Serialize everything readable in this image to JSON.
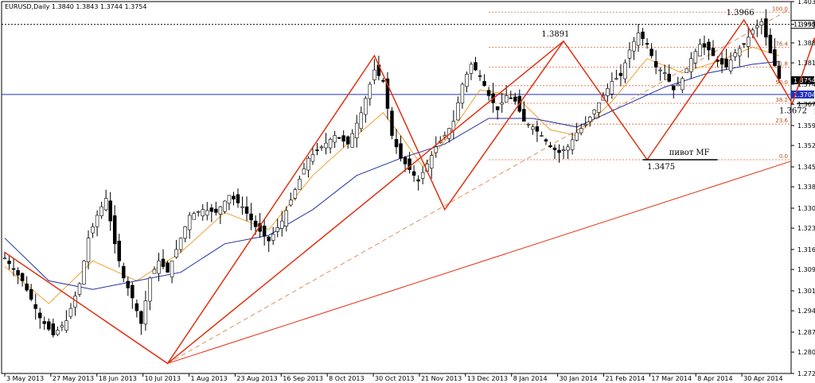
{
  "chart_data": {
    "type": "candlestick",
    "title": "EURUSD,Daily  1.3840 1.3843 1.3744 1.3754",
    "ylim": [
      1.2725,
      1.403
    ],
    "y_ticks": [
      "1.4030",
      "1.3950",
      "1.3885",
      "1.3815",
      "1.3740",
      "1.3670",
      "1.3595",
      "1.3525",
      "1.3450",
      "1.3380",
      "1.3305",
      "1.3235",
      "1.3160",
      "1.3090",
      "1.3015",
      "1.2945",
      "1.2870",
      "1.2800",
      "1.2725"
    ],
    "x_ticks": [
      "3 May 2013",
      "27 May 2013",
      "18 Jun 2013",
      "10 Jul 2013",
      "1 Aug 2013",
      "23 Aug 2013",
      "16 Sep 2013",
      "8 Oct 2013",
      "30 Oct 2013",
      "21 Nov 2013",
      "13 Dec 2013",
      "8 Jan 2014",
      "30 Jan 2014",
      "21 Feb 2014",
      "17 Mar 2014",
      "8 Apr 2014",
      "30 Apr 2014"
    ],
    "close_path": [
      [
        0,
        1.313
      ],
      [
        4,
        1.305
      ],
      [
        8,
        1.292
      ],
      [
        11,
        1.286
      ],
      [
        14,
        1.291
      ],
      [
        17,
        1.304
      ],
      [
        19,
        1.32
      ],
      [
        21,
        1.328
      ],
      [
        23,
        1.334
      ],
      [
        25,
        1.318
      ],
      [
        27,
        1.306
      ],
      [
        29,
        1.299
      ],
      [
        31,
        1.29
      ],
      [
        33,
        1.306
      ],
      [
        35,
        1.312
      ],
      [
        37,
        1.308
      ],
      [
        39,
        1.316
      ],
      [
        42,
        1.328
      ],
      [
        45,
        1.33
      ],
      [
        48,
        1.329
      ],
      [
        51,
        1.335
      ],
      [
        54,
        1.331
      ],
      [
        57,
        1.324
      ],
      [
        60,
        1.319
      ],
      [
        63,
        1.326
      ],
      [
        66,
        1.337
      ],
      [
        69,
        1.348
      ],
      [
        72,
        1.352
      ],
      [
        75,
        1.356
      ],
      [
        78,
        1.353
      ],
      [
        81,
        1.364
      ],
      [
        84,
        1.379
      ],
      [
        86,
        1.375
      ],
      [
        88,
        1.356
      ],
      [
        90,
        1.348
      ],
      [
        92,
        1.344
      ],
      [
        94,
        1.34
      ],
      [
        96,
        1.346
      ],
      [
        98,
        1.352
      ],
      [
        100,
        1.356
      ],
      [
        102,
        1.361
      ],
      [
        104,
        1.374
      ],
      [
        106,
        1.381
      ],
      [
        108,
        1.377
      ],
      [
        110,
        1.37
      ],
      [
        112,
        1.365
      ],
      [
        114,
        1.37
      ],
      [
        116,
        1.368
      ],
      [
        118,
        1.361
      ],
      [
        120,
        1.359
      ],
      [
        122,
        1.356
      ],
      [
        124,
        1.352
      ],
      [
        126,
        1.35
      ],
      [
        128,
        1.352
      ],
      [
        130,
        1.357
      ],
      [
        132,
        1.36
      ],
      [
        134,
        1.365
      ],
      [
        136,
        1.37
      ],
      [
        138,
        1.375
      ],
      [
        140,
        1.377
      ],
      [
        142,
        1.386
      ],
      [
        144,
        1.392
      ],
      [
        146,
        1.388
      ],
      [
        148,
        1.38
      ],
      [
        150,
        1.378
      ],
      [
        152,
        1.372
      ],
      [
        154,
        1.376
      ],
      [
        156,
        1.383
      ],
      [
        158,
        1.388
      ],
      [
        160,
        1.386
      ],
      [
        162,
        1.382
      ],
      [
        164,
        1.38
      ],
      [
        166,
        1.385
      ],
      [
        168,
        1.388
      ],
      [
        170,
        1.393
      ],
      [
        172,
        1.396
      ],
      [
        174,
        1.385
      ],
      [
        176,
        1.376
      ]
    ],
    "series": [
      {
        "name": "",
        "color": "#f0a030",
        "values": [
          [
            0,
            1.31
          ],
          [
            10,
            1.297
          ],
          [
            20,
            1.312
          ],
          [
            30,
            1.305
          ],
          [
            40,
            1.315
          ],
          [
            50,
            1.329
          ],
          [
            60,
            1.323
          ],
          [
            70,
            1.342
          ],
          [
            80,
            1.356
          ],
          [
            86,
            1.364
          ],
          [
            90,
            1.356
          ],
          [
            95,
            1.345
          ],
          [
            100,
            1.354
          ],
          [
            108,
            1.372
          ],
          [
            116,
            1.37
          ],
          [
            124,
            1.358
          ],
          [
            130,
            1.356
          ],
          [
            138,
            1.368
          ],
          [
            146,
            1.383
          ],
          [
            154,
            1.378
          ],
          [
            162,
            1.382
          ],
          [
            170,
            1.387
          ],
          [
            176,
            1.384
          ]
        ]
      },
      {
        "name": "",
        "color": "#2030a0",
        "values": [
          [
            0,
            1.32
          ],
          [
            10,
            1.305
          ],
          [
            20,
            1.302
          ],
          [
            30,
            1.305
          ],
          [
            40,
            1.308
          ],
          [
            50,
            1.318
          ],
          [
            60,
            1.321
          ],
          [
            70,
            1.33
          ],
          [
            80,
            1.342
          ],
          [
            90,
            1.348
          ],
          [
            100,
            1.353
          ],
          [
            110,
            1.362
          ],
          [
            120,
            1.362
          ],
          [
            130,
            1.359
          ],
          [
            140,
            1.366
          ],
          [
            150,
            1.373
          ],
          [
            160,
            1.378
          ],
          [
            170,
            1.381
          ],
          [
            176,
            1.382
          ]
        ]
      }
    ],
    "current_price": "1.3754",
    "pivot_level": "1.3704",
    "price_label_3950": "1.3950",
    "swing_labels": [
      "1.3891",
      "1.3966",
      "1.3993",
      "1.3672",
      "1.3475"
    ],
    "pivot_text": "пивот MF",
    "fib_levels": [
      {
        "label": "100.0",
        "price": 1.3993
      },
      {
        "label": "76.4",
        "price": 1.387
      },
      {
        "label": "61.8",
        "price": 1.38
      },
      {
        "label": "50.0",
        "price": 1.3735
      },
      {
        "label": "38.2",
        "price": 1.3673
      },
      {
        "label": "23.6",
        "price": 1.36
      },
      {
        "label": "0.0",
        "price": 1.3475
      }
    ],
    "colors": {
      "up": "#000000",
      "down": "#000000",
      "grid": "#cccccc",
      "zigzag": "#e03010",
      "fib": "#e06030",
      "pivot": "#2030c0",
      "arrow_up": "#3040b0",
      "arrow_down": "#e01010"
    }
  }
}
